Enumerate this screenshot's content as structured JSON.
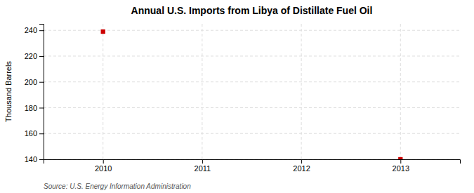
{
  "chart_data": {
    "type": "scatter",
    "title": "Annual U.S. Imports from Libya of Distillate Fuel Oil",
    "ylabel": "Thousand Barrels",
    "source": "Source: U.S. Energy Information Administration",
    "x": [
      2010,
      2013
    ],
    "values": [
      239,
      140
    ],
    "color": "#cc0000",
    "marker": "square",
    "xlim": [
      2009.4,
      2013.6
    ],
    "ylim": [
      140,
      245
    ],
    "xticks": [
      2010,
      2011,
      2012,
      2013
    ],
    "yticks": [
      140,
      160,
      180,
      200,
      220,
      240
    ],
    "grid": true
  }
}
